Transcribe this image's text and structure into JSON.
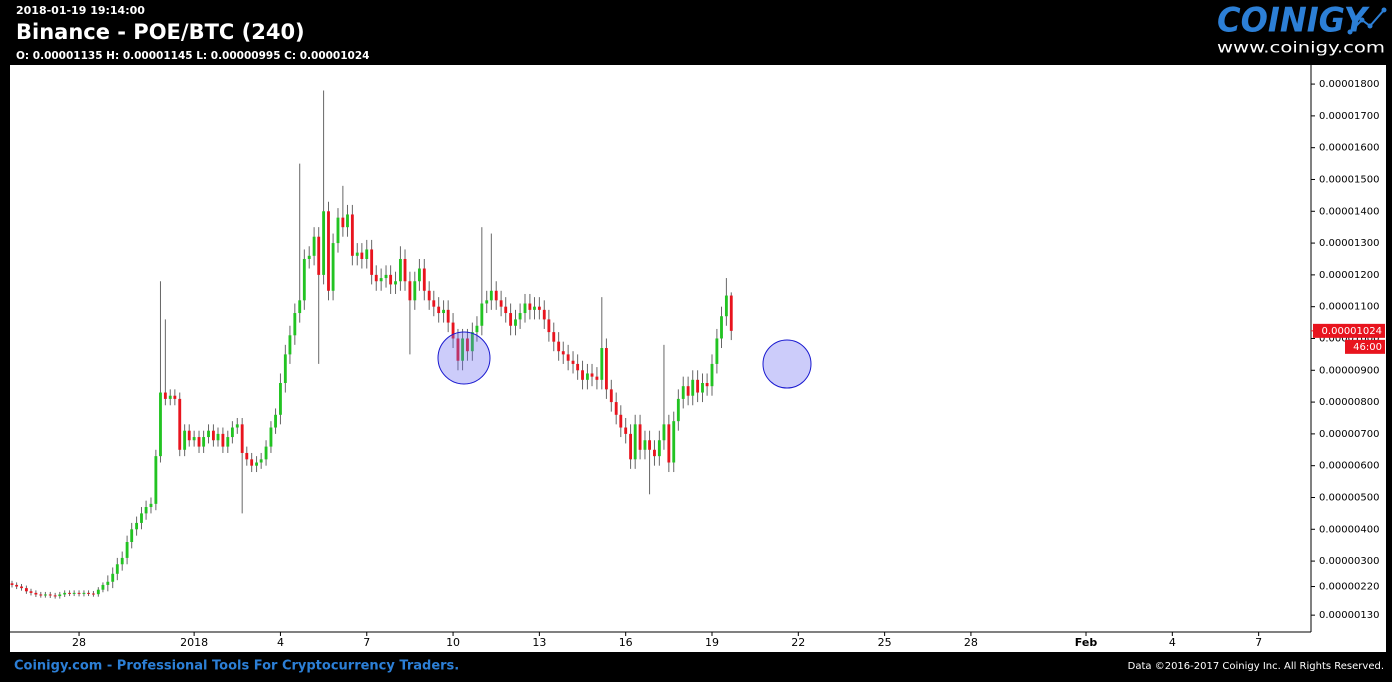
{
  "header": {
    "timestamp": "2018-01-19 19:14:00",
    "title": "Binance - POE/BTC (240)",
    "ohlc": "O: 0.00001135 H: 0.00001145 L: 0.00000995 C: 0.00001024"
  },
  "logo": {
    "name": "COINIGY",
    "url": "www.coinigy.com"
  },
  "footer": {
    "tagline": "Coinigy.com - Professional Tools For Cryptocurrency Traders.",
    "copyright": "Data ©2016-2017 Coinigy Inc. All Rights Reserved."
  },
  "chart_data": {
    "type": "candlestick",
    "up_color": "#22c322",
    "down_color": "#e8141e",
    "wick_color": "#666666",
    "last_price_label": "0.00001024",
    "countdown": "46:00",
    "xlim": [
      25.6,
      70.82
    ],
    "xticks": [
      {
        "value": 28,
        "label": "28"
      },
      {
        "value": 32,
        "label": "2018"
      },
      {
        "value": 35,
        "label": "4"
      },
      {
        "value": 38,
        "label": "7"
      },
      {
        "value": 41,
        "label": "10"
      },
      {
        "value": 44,
        "label": "13"
      },
      {
        "value": 47,
        "label": "16"
      },
      {
        "value": 50,
        "label": "19"
      },
      {
        "value": 53,
        "label": "22"
      },
      {
        "value": 56,
        "label": "25"
      },
      {
        "value": 59,
        "label": "28"
      },
      {
        "value": 63,
        "label": "Feb"
      },
      {
        "value": 66,
        "label": "4"
      },
      {
        "value": 69,
        "label": "7"
      }
    ],
    "ylim": [
      7.7e-07,
      1.86e-05
    ],
    "yticks": [
      {
        "value": 1.8e-05,
        "label": "0.00001800"
      },
      {
        "value": 1.7e-05,
        "label": "0.00001700"
      },
      {
        "value": 1.6e-05,
        "label": "0.00001600"
      },
      {
        "value": 1.5e-05,
        "label": "0.00001500"
      },
      {
        "value": 1.4e-05,
        "label": "0.00001400"
      },
      {
        "value": 1.3e-05,
        "label": "0.00001300"
      },
      {
        "value": 1.2e-05,
        "label": "0.00001200"
      },
      {
        "value": 1.1e-05,
        "label": "0.00001100"
      },
      {
        "value": 1e-05,
        "label": "0.00001000"
      },
      {
        "value": 9e-06,
        "label": "0.00000900"
      },
      {
        "value": 8e-06,
        "label": "0.00000800"
      },
      {
        "value": 7e-06,
        "label": "0.00000700"
      },
      {
        "value": 6e-06,
        "label": "0.00000600"
      },
      {
        "value": 5e-06,
        "label": "0.00000500"
      },
      {
        "value": 4e-06,
        "label": "0.00000400"
      },
      {
        "value": 3e-06,
        "label": "0.00000300"
      },
      {
        "value": 2.2e-06,
        "label": "0.00000220"
      },
      {
        "value": 1.3e-06,
        "label": "0.00000130"
      }
    ],
    "x": [
      25.67,
      25.83,
      26,
      26.17,
      26.33,
      26.5,
      26.67,
      26.83,
      27,
      27.17,
      27.33,
      27.5,
      27.67,
      27.83,
      28,
      28.17,
      28.33,
      28.5,
      28.67,
      28.83,
      29,
      29.17,
      29.33,
      29.5,
      29.67,
      29.83,
      30,
      30.17,
      30.33,
      30.5,
      30.67,
      30.83,
      31,
      31.17,
      31.33,
      31.5,
      31.67,
      31.83,
      32,
      32.17,
      32.33,
      32.5,
      32.67,
      32.83,
      33,
      33.17,
      33.33,
      33.5,
      33.67,
      33.83,
      34,
      34.17,
      34.33,
      34.5,
      34.67,
      34.83,
      35,
      35.17,
      35.33,
      35.5,
      35.67,
      35.83,
      36,
      36.17,
      36.33,
      36.5,
      36.67,
      36.83,
      37,
      37.17,
      37.33,
      37.5,
      37.67,
      37.83,
      38,
      38.17,
      38.33,
      38.5,
      38.67,
      38.83,
      39,
      39.17,
      39.33,
      39.5,
      39.67,
      39.83,
      40,
      40.17,
      40.33,
      40.5,
      40.67,
      40.83,
      41,
      41.17,
      41.33,
      41.5,
      41.67,
      41.83,
      42,
      42.17,
      42.33,
      42.5,
      42.67,
      42.83,
      43,
      43.17,
      43.33,
      43.5,
      43.67,
      43.83,
      44,
      44.17,
      44.33,
      44.5,
      44.67,
      44.83,
      45,
      45.17,
      45.33,
      45.5,
      45.67,
      45.83,
      46,
      46.17,
      46.33,
      46.5,
      46.67,
      46.83,
      47,
      47.17,
      47.33,
      47.5,
      47.67,
      47.83,
      48,
      48.17,
      48.33,
      48.5,
      48.67,
      48.83,
      49,
      49.17,
      49.33,
      49.5,
      49.67,
      49.83,
      50,
      50.17,
      50.33,
      50.5,
      50.67
    ],
    "open": [
      2.3e-06,
      2.25e-06,
      2.2e-06,
      2.15e-06,
      2.05e-06,
      2e-06,
      1.95e-06,
      1.93e-06,
      1.95e-06,
      1.92e-06,
      1.9e-06,
      1.95e-06,
      2e-06,
      1.98e-06,
      2e-06,
      1.97e-06,
      2e-06,
      1.98e-06,
      1.96e-06,
      2.1e-06,
      2.25e-06,
      2.35e-06,
      2.6e-06,
      2.9e-06,
      3.1e-06,
      3.6e-06,
      4e-06,
      4.2e-06,
      4.5e-06,
      4.7e-06,
      4.8e-06,
      6.3e-06,
      8.3e-06,
      8.1e-06,
      8.2e-06,
      8.1e-06,
      6.5e-06,
      7.1e-06,
      6.8e-06,
      6.9e-06,
      6.6e-06,
      6.9e-06,
      7.1e-06,
      6.8e-06,
      7e-06,
      6.6e-06,
      6.9e-06,
      7.2e-06,
      7.3e-06,
      6.4e-06,
      6.2e-06,
      6e-06,
      6.1e-06,
      6.2e-06,
      6.6e-06,
      7.2e-06,
      7.6e-06,
      8.6e-06,
      9.5e-06,
      1.01e-05,
      1.08e-05,
      1.12e-05,
      1.25e-05,
      1.26e-05,
      1.32e-05,
      1.2e-05,
      1.4e-05,
      1.15e-05,
      1.3e-05,
      1.38e-05,
      1.35e-05,
      1.39e-05,
      1.26e-05,
      1.27e-05,
      1.25e-05,
      1.28e-05,
      1.2e-05,
      1.18e-05,
      1.19e-05,
      1.2e-05,
      1.17e-05,
      1.18e-05,
      1.25e-05,
      1.18e-05,
      1.12e-05,
      1.18e-05,
      1.22e-05,
      1.15e-05,
      1.12e-05,
      1.1e-05,
      1.08e-05,
      1.09e-05,
      1.05e-05,
      1e-05,
      9.3e-06,
      1e-05,
      9.6e-06,
      1.02e-05,
      1.04e-05,
      1.11e-05,
      1.12e-05,
      1.15e-05,
      1.12e-05,
      1.1e-05,
      1.08e-05,
      1.04e-05,
      1.06e-05,
      1.08e-05,
      1.11e-05,
      1.09e-05,
      1.1e-05,
      1.09e-05,
      1.06e-05,
      1.02e-05,
      9.9e-06,
      9.6e-06,
      9.5e-06,
      9.3e-06,
      9.2e-06,
      9e-06,
      8.7e-06,
      8.9e-06,
      8.8e-06,
      8.7e-06,
      9.7e-06,
      8.4e-06,
      8e-06,
      7.6e-06,
      7.2e-06,
      7e-06,
      6.2e-06,
      7.3e-06,
      6.5e-06,
      6.8e-06,
      6.5e-06,
      6.3e-06,
      6.8e-06,
      7.3e-06,
      6.1e-06,
      7.4e-06,
      8.1e-06,
      8.5e-06,
      8.2e-06,
      8.7e-06,
      8.3e-06,
      8.6e-06,
      8.5e-06,
      9.2e-06,
      1e-05,
      1.07e-05,
      1.135e-05
    ],
    "high": [
      2.38e-06,
      2.33e-06,
      2.28e-06,
      2.23e-06,
      2.13e-06,
      2.08e-06,
      2.03e-06,
      2.03e-06,
      2.03e-06,
      2e-06,
      2.03e-06,
      2.08e-06,
      2.08e-06,
      2.08e-06,
      2.08e-06,
      2.08e-06,
      2.08e-06,
      2.06e-06,
      2.18e-06,
      2.33e-06,
      2.55e-06,
      2.8e-06,
      3.1e-06,
      3.3e-06,
      3.8e-06,
      4.2e-06,
      4.4e-06,
      4.7e-06,
      4.9e-06,
      5e-06,
      6.5e-06,
      1.18e-05,
      1.06e-05,
      8.4e-06,
      8.4e-06,
      8.3e-06,
      7.3e-06,
      7.3e-06,
      7.1e-06,
      7.1e-06,
      7.1e-06,
      7.3e-06,
      7.3e-06,
      7.2e-06,
      7.2e-06,
      7.1e-06,
      7.4e-06,
      7.5e-06,
      7.5e-06,
      6.6e-06,
      6.4e-06,
      6.3e-06,
      6.4e-06,
      6.8e-06,
      7.4e-06,
      7.8e-06,
      8.9e-06,
      9.8e-06,
      1.04e-05,
      1.11e-05,
      1.55e-05,
      1.28e-05,
      1.29e-05,
      1.35e-05,
      1.35e-05,
      1.78e-05,
      1.43e-05,
      1.33e-05,
      1.41e-05,
      1.48e-05,
      1.42e-05,
      1.42e-05,
      1.3e-05,
      1.3e-05,
      1.31e-05,
      1.31e-05,
      1.23e-05,
      1.22e-05,
      1.23e-05,
      1.23e-05,
      1.21e-05,
      1.29e-05,
      1.28e-05,
      1.21e-05,
      1.21e-05,
      1.25e-05,
      1.25e-05,
      1.18e-05,
      1.15e-05,
      1.13e-05,
      1.12e-05,
      1.12e-05,
      1.08e-05,
      1.03e-05,
      1.03e-05,
      1.03e-05,
      1.05e-05,
      1.07e-05,
      1.35e-05,
      1.15e-05,
      1.33e-05,
      1.18e-05,
      1.15e-05,
      1.13e-05,
      1.11e-05,
      1.09e-05,
      1.11e-05,
      1.14e-05,
      1.14e-05,
      1.13e-05,
      1.13e-05,
      1.12e-05,
      1.09e-05,
      1.05e-05,
      1.02e-05,
      9.9e-06,
      9.8e-06,
      9.6e-06,
      9.5e-06,
      9.3e-06,
      9.2e-06,
      9.2e-06,
      9.1e-06,
      1.13e-05,
      1e-05,
      8.7e-06,
      8.3e-06,
      7.9e-06,
      7.5e-06,
      7.3e-06,
      7.6e-06,
      7.6e-06,
      7.1e-06,
      7.1e-06,
      6.8e-06,
      7.1e-06,
      9.8e-06,
      7.6e-06,
      7.7e-06,
      8.4e-06,
      8.8e-06,
      8.8e-06,
      9e-06,
      9e-06,
      8.9e-06,
      8.9e-06,
      9.5e-06,
      1.03e-05,
      1.1e-05,
      1.19e-05,
      1.145e-05
    ],
    "low": [
      2.17e-06,
      2.12e-06,
      2.07e-06,
      1.97e-06,
      1.92e-06,
      1.87e-06,
      1.85e-06,
      1.85e-06,
      1.84e-06,
      1.82e-06,
      1.82e-06,
      1.87e-06,
      1.9e-06,
      1.9e-06,
      1.89e-06,
      1.89e-06,
      1.9e-06,
      1.88e-06,
      1.88e-06,
      2.02e-06,
      2.05e-06,
      2.15e-06,
      2.4e-06,
      2.7e-06,
      2.9e-06,
      3.4e-06,
      3.8e-06,
      4e-06,
      4.3e-06,
      4.5e-06,
      4.6e-06,
      6.1e-06,
      7.9e-06,
      7.9e-06,
      7.9e-06,
      6.3e-06,
      6.3e-06,
      6.6e-06,
      6.6e-06,
      6.4e-06,
      6.4e-06,
      6.7e-06,
      6.6e-06,
      6.6e-06,
      6.4e-06,
      6.4e-06,
      6.7e-06,
      7e-06,
      4.5e-06,
      6e-06,
      5.8e-06,
      5.8e-06,
      5.9e-06,
      6e-06,
      6.4e-06,
      7e-06,
      7.3e-06,
      8.3e-06,
      9.2e-06,
      9.8e-06,
      1.05e-05,
      1.09e-05,
      1.22e-05,
      1.23e-05,
      9.2e-06,
      1.17e-05,
      1.12e-05,
      1.12e-05,
      1.27e-05,
      1.32e-05,
      1.32e-05,
      1.23e-05,
      1.23e-05,
      1.22e-05,
      1.22e-05,
      1.17e-05,
      1.15e-05,
      1.15e-05,
      1.16e-05,
      1.14e-05,
      1.14e-05,
      1.15e-05,
      1.15e-05,
      9.5e-06,
      1.09e-05,
      1.15e-05,
      1.12e-05,
      1.09e-05,
      1.07e-05,
      1.05e-05,
      1.05e-05,
      1.02e-05,
      9.7e-06,
      9e-06,
      9e-06,
      9.3e-06,
      9.3e-06,
      9.9e-06,
      1.01e-05,
      1.08e-05,
      1.09e-05,
      1.09e-05,
      1.07e-05,
      1.05e-05,
      1.01e-05,
      1.01e-05,
      1.03e-05,
      1.05e-05,
      1.06e-05,
      1.06e-05,
      1.06e-05,
      1.03e-05,
      9.9e-06,
      9.6e-06,
      9.3e-06,
      9.2e-06,
      9e-06,
      8.9e-06,
      8.7e-06,
      8.4e-06,
      8.4e-06,
      8.5e-06,
      8.4e-06,
      8.4e-06,
      8.1e-06,
      7.7e-06,
      7.3e-06,
      6.9e-06,
      6.7e-06,
      5.9e-06,
      5.9e-06,
      6.2e-06,
      6.2e-06,
      5.1e-06,
      6e-06,
      6e-06,
      6.5e-06,
      5.8e-06,
      5.8e-06,
      7.1e-06,
      7.8e-06,
      7.9e-06,
      7.9e-06,
      8e-06,
      8e-06,
      8.2e-06,
      8.2e-06,
      8.9e-06,
      9.7e-06,
      1.04e-05,
      9.95e-06
    ],
    "close": [
      2.25e-06,
      2.2e-06,
      2.15e-06,
      2.05e-06,
      2e-06,
      1.95e-06,
      1.93e-06,
      1.95e-06,
      1.92e-06,
      1.9e-06,
      1.95e-06,
      2e-06,
      1.98e-06,
      2e-06,
      1.97e-06,
      2e-06,
      1.98e-06,
      1.96e-06,
      2.1e-06,
      2.25e-06,
      2.35e-06,
      2.6e-06,
      2.9e-06,
      3.1e-06,
      3.6e-06,
      4e-06,
      4.2e-06,
      4.5e-06,
      4.7e-06,
      4.8e-06,
      6.3e-06,
      8.3e-06,
      8.1e-06,
      8.2e-06,
      8.1e-06,
      6.5e-06,
      7.1e-06,
      6.8e-06,
      6.9e-06,
      6.6e-06,
      6.9e-06,
      7.1e-06,
      6.8e-06,
      7e-06,
      6.6e-06,
      6.9e-06,
      7.2e-06,
      7.3e-06,
      6.4e-06,
      6.2e-06,
      6e-06,
      6.1e-06,
      6.2e-06,
      6.6e-06,
      7.2e-06,
      7.6e-06,
      8.6e-06,
      9.5e-06,
      1.01e-05,
      1.08e-05,
      1.12e-05,
      1.25e-05,
      1.26e-05,
      1.32e-05,
      1.2e-05,
      1.4e-05,
      1.15e-05,
      1.3e-05,
      1.38e-05,
      1.35e-05,
      1.39e-05,
      1.26e-05,
      1.27e-05,
      1.25e-05,
      1.28e-05,
      1.2e-05,
      1.18e-05,
      1.19e-05,
      1.2e-05,
      1.17e-05,
      1.18e-05,
      1.25e-05,
      1.18e-05,
      1.12e-05,
      1.18e-05,
      1.22e-05,
      1.15e-05,
      1.12e-05,
      1.1e-05,
      1.08e-05,
      1.09e-05,
      1.05e-05,
      1e-05,
      9.3e-06,
      1e-05,
      9.6e-06,
      1.02e-05,
      1.04e-05,
      1.11e-05,
      1.12e-05,
      1.15e-05,
      1.12e-05,
      1.1e-05,
      1.08e-05,
      1.04e-05,
      1.06e-05,
      1.08e-05,
      1.11e-05,
      1.09e-05,
      1.1e-05,
      1.09e-05,
      1.06e-05,
      1.02e-05,
      9.9e-06,
      9.6e-06,
      9.5e-06,
      9.3e-06,
      9.2e-06,
      9e-06,
      8.7e-06,
      8.9e-06,
      8.8e-06,
      8.7e-06,
      9.7e-06,
      8.4e-06,
      8e-06,
      7.6e-06,
      7.2e-06,
      7e-06,
      6.2e-06,
      7.3e-06,
      6.5e-06,
      6.8e-06,
      6.5e-06,
      6.3e-06,
      6.8e-06,
      7.3e-06,
      6.1e-06,
      7.4e-06,
      8.1e-06,
      8.5e-06,
      8.2e-06,
      8.7e-06,
      8.3e-06,
      8.6e-06,
      8.5e-06,
      9.2e-06,
      1e-05,
      1.07e-05,
      1.135e-05,
      1.024e-05
    ]
  }
}
